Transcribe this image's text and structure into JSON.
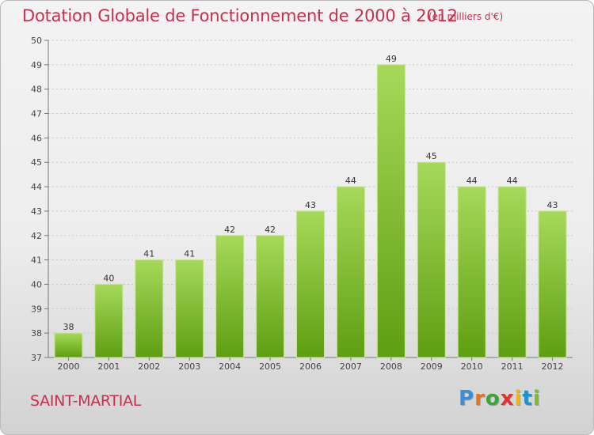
{
  "header": {
    "title": "Dotation Globale de Fonctionnement de 2000 à 2012",
    "subtitle": "(en milliers d'€)"
  },
  "footer": {
    "location": "SAINT-MARTIAL",
    "logo_text": "Proxiti"
  },
  "colors": {
    "accent": "#c4304e",
    "bar_top": "#a6d95a",
    "bar_bottom": "#5e9e12"
  },
  "chart_data": {
    "type": "bar",
    "title": "Dotation Globale de Fonctionnement de 2000 à 2012",
    "subtitle": "(en milliers d'€)",
    "categories": [
      "2000",
      "2001",
      "2002",
      "2003",
      "2004",
      "2005",
      "2006",
      "2007",
      "2008",
      "2009",
      "2010",
      "2011",
      "2012"
    ],
    "values": [
      38,
      40,
      41,
      41,
      42,
      42,
      43,
      44,
      49,
      45,
      44,
      44,
      43
    ],
    "ylim": [
      37,
      50
    ],
    "yticks": [
      37,
      38,
      39,
      40,
      41,
      42,
      43,
      44,
      45,
      46,
      47,
      48,
      49,
      50
    ],
    "xlabel": "",
    "ylabel": "",
    "grid": "horizontal dotted",
    "legend": "none",
    "data_labels": true
  }
}
